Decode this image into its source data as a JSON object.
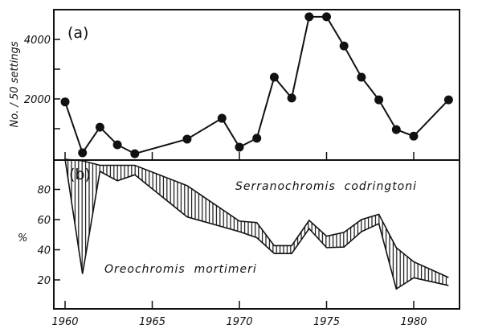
{
  "chart_data": [
    {
      "panel_label": "(a)",
      "type": "line",
      "ylabel": "No. / 50 settings",
      "ylim": [
        0,
        5000
      ],
      "yticks": [
        1000,
        2000,
        3000,
        4000
      ],
      "ytick_labels": [
        "2000",
        "4000"
      ],
      "xlim": [
        1959.7,
        1983
      ],
      "x": [
        1960,
        1961,
        1962,
        1963,
        1964,
        1967,
        1969,
        1970,
        1971,
        1972,
        1973,
        1974,
        1975,
        1976,
        1977,
        1978,
        1979,
        1980,
        1982
      ],
      "values": [
        1900,
        190,
        1050,
        460,
        160,
        650,
        1350,
        380,
        680,
        2730,
        2030,
        4760,
        4760,
        3780,
        2730,
        1970,
        970,
        750,
        1970
      ],
      "markers": "filled-circle",
      "grid": false
    },
    {
      "panel_label": "(b)",
      "type": "area",
      "ylabel": "%",
      "ylim": [
        0,
        100
      ],
      "ytick_labels": [
        "20",
        "40",
        "60",
        "80"
      ],
      "xlabel": "",
      "xtick_labels": [
        "1960",
        "1965",
        "1970",
        "1975",
        "1980"
      ],
      "x": [
        1960,
        1961,
        1962,
        1963,
        1964,
        1967,
        1970,
        1971,
        1972,
        1973,
        1974,
        1975,
        1976,
        1977,
        1978,
        1979,
        1980,
        1982
      ],
      "upper_boundary": [
        100,
        99,
        96,
        96,
        96,
        82.5,
        59,
        58,
        42.7,
        42.7,
        59.5,
        49,
        51.5,
        60,
        63.5,
        41.4,
        32,
        21.6
      ],
      "lower_boundary": [
        100,
        24,
        92,
        85.7,
        89.7,
        61.8,
        52,
        48,
        37.5,
        37.5,
        54,
        41.4,
        41.8,
        52,
        57.3,
        14,
        21.4,
        16.3
      ],
      "annotations": [
        "Serranochromis  codringtoni",
        "Oreochromis  mortimeri"
      ],
      "band_fill": "vertical hatching",
      "grid": false
    }
  ]
}
